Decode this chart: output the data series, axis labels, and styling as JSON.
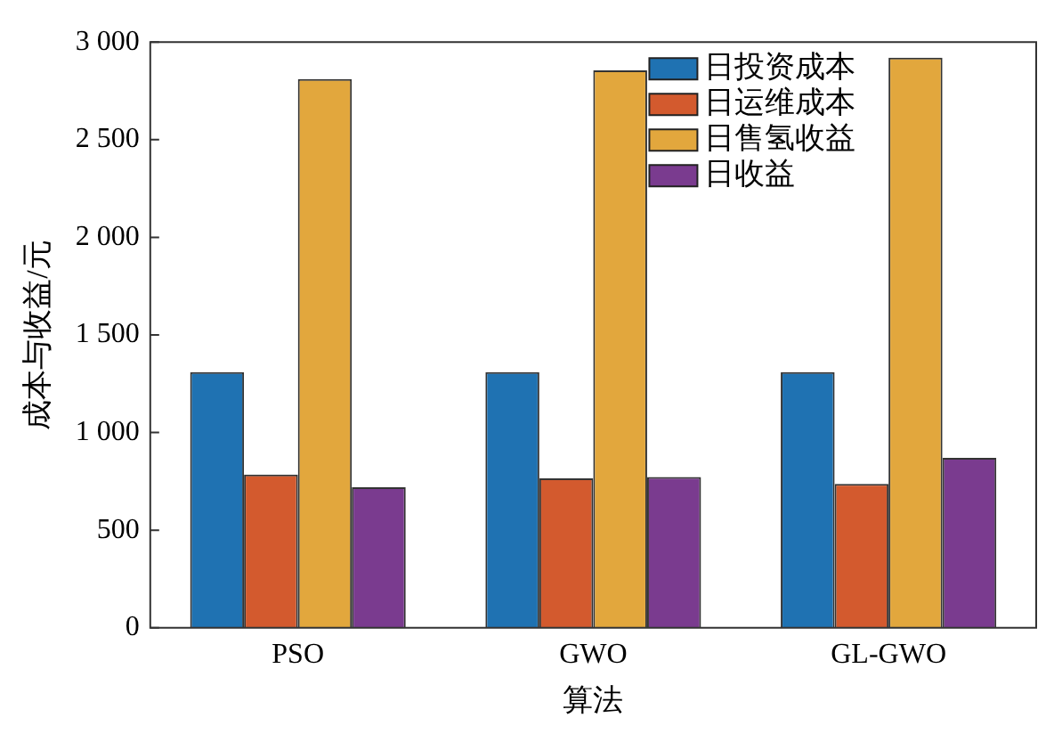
{
  "chart_data": {
    "type": "bar",
    "xlabel": "算法",
    "ylabel": "成本与收益/元",
    "categories": [
      "PSO",
      "GWO",
      "GL-GWO"
    ],
    "series": [
      {
        "name": "日投资成本",
        "color": "#1f72b2",
        "values": [
          1310,
          1310,
          1310
        ]
      },
      {
        "name": "日运维成本",
        "color": "#d35a2e",
        "values": [
          785,
          766,
          737
        ]
      },
      {
        "name": "日售氢收益",
        "color": "#e2a73d",
        "values": [
          2810,
          2855,
          2920
        ]
      },
      {
        "name": "日收益",
        "color": "#7a3b8f",
        "values": [
          720,
          772,
          871
        ]
      }
    ],
    "ylim": [
      0,
      3000
    ],
    "yticks": [
      {
        "value": 0,
        "label": "0"
      },
      {
        "value": 500,
        "label": "500"
      },
      {
        "value": 1000,
        "label": "1 000"
      },
      {
        "value": 1500,
        "label": "1 500"
      },
      {
        "value": 2000,
        "label": "2 000"
      },
      {
        "value": 2500,
        "label": "2 500"
      },
      {
        "value": 3000,
        "label": "3 000"
      }
    ],
    "grid": false,
    "legend": "top right"
  }
}
